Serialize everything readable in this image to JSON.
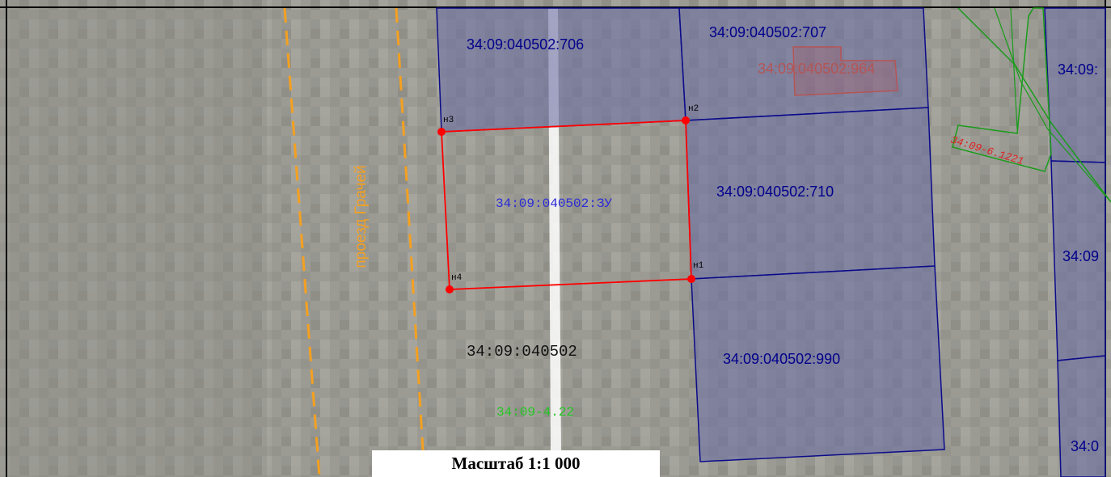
{
  "map": {
    "colors": {
      "parcel_fill": "#6e6fa3",
      "parcel_stroke": "#0b0b8a",
      "selected_stroke": "#ff0000",
      "zone_stroke": "#1a9c1a",
      "road_dash": "#f5a020",
      "background": "#999992"
    },
    "parcels": {
      "p706": "34:09:040502:706",
      "p707": "34:09:040502:707",
      "p964": "34:09:040502:964",
      "p710": "34:09:040502:710",
      "p990": "34:09:040502:990",
      "edge_top": "34:09:",
      "edge_mid": "34:09",
      "edge_bottom": "34:0"
    },
    "selected_parcel": "34:09:040502:ЗУ",
    "block": "34:09:040502",
    "zone_green": "34:09-4.22",
    "zone_red": "34:09-6.1221",
    "street": "проезд Грачей",
    "points": {
      "n1": "н1",
      "n2": "н2",
      "n3": "н3",
      "n4": "н4"
    },
    "scale": "Масштаб 1:1 000"
  }
}
